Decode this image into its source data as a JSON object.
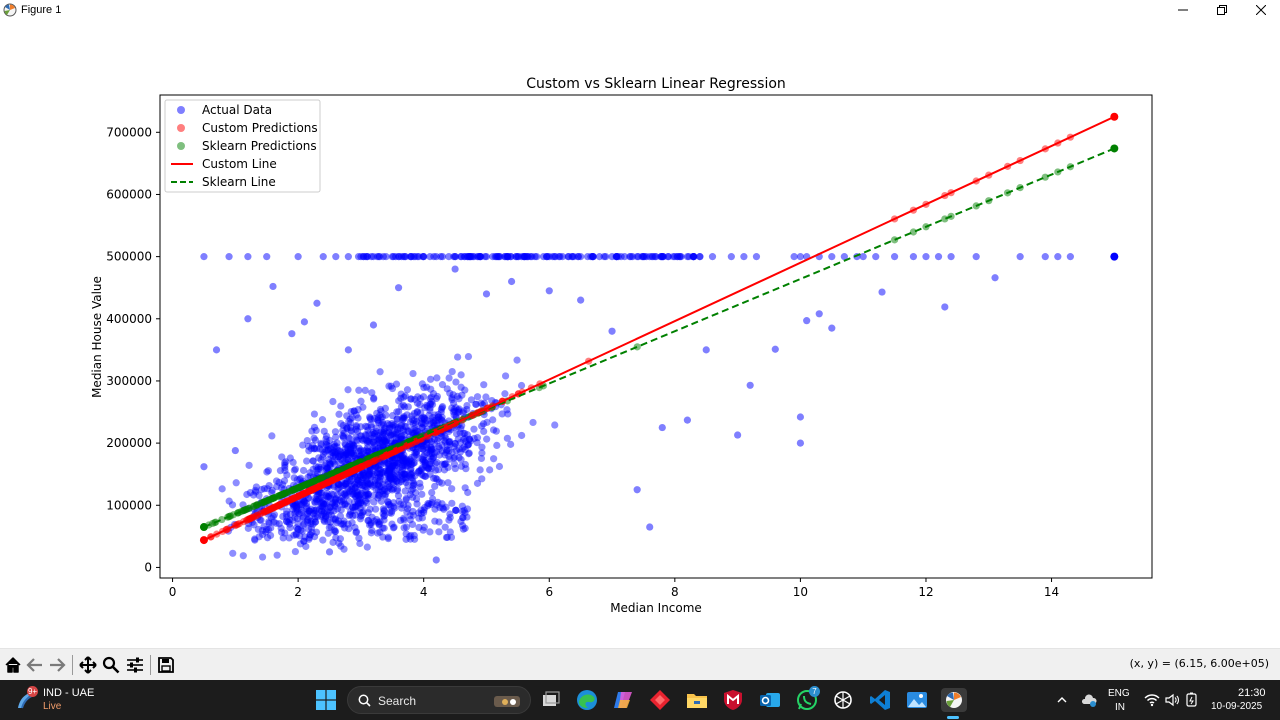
{
  "window": {
    "title": "Figure 1"
  },
  "toolbar": {
    "coords": "(x, y) = (6.15, 6.00e+05)"
  },
  "taskbar": {
    "weather_badge": "9+",
    "weather_location": "IND - UAE",
    "weather_status": "Live",
    "search_label": "Search",
    "whatsapp_badge": "7",
    "lang_top": "ENG",
    "lang_bottom": "IN",
    "time": "21:30",
    "date": "10-09-2025"
  },
  "chart_data": {
    "type": "scatter",
    "title": "Custom vs Sklearn Linear Regression",
    "xlabel": "Median Income",
    "ylabel": "Median House Value",
    "xlim": [
      -0.2,
      15.6
    ],
    "ylim": [
      -17000,
      760000
    ],
    "xticks": [
      0,
      2,
      4,
      6,
      8,
      10,
      12,
      14
    ],
    "yticks": [
      0,
      100000,
      200000,
      300000,
      400000,
      500000,
      600000,
      700000
    ],
    "legend_position": "upper-left",
    "legend": [
      "Actual Data",
      "Custom Predictions",
      "Sklearn Predictions",
      "Custom Line",
      "Sklearn Line"
    ],
    "colors": {
      "actual": "#0000ff",
      "custom": "#ff0000",
      "sklearn": "#008000"
    },
    "custom_line": {
      "x": [
        0.5,
        15.0
      ],
      "y": [
        44000,
        725000
      ]
    },
    "sklearn_line": {
      "x": [
        0.5,
        15.0
      ],
      "y": [
        65000,
        674000
      ]
    },
    "capped_points_y": 500001,
    "capped_points_x": [
      0.5,
      0.9,
      1.2,
      1.5,
      2.0,
      2.4,
      2.6,
      2.8,
      3.0,
      3.1,
      3.2,
      3.3,
      3.4,
      3.5,
      3.6,
      3.7,
      3.8,
      3.9,
      4.0,
      4.1,
      4.2,
      4.3,
      4.4,
      4.5,
      4.6,
      4.7,
      4.8,
      4.9,
      5.0,
      5.1,
      5.2,
      5.3,
      5.5,
      5.6,
      5.8,
      6.0,
      6.1,
      6.3,
      6.5,
      6.7,
      6.8,
      6.9,
      7.0,
      7.1,
      7.2,
      7.3,
      7.4,
      7.5,
      7.6,
      7.7,
      7.8,
      7.9,
      8.0,
      8.1,
      8.2,
      8.3,
      8.4,
      8.6,
      8.9,
      9.1,
      9.3,
      9.9,
      10.0,
      10.1,
      10.3,
      10.5,
      10.7,
      10.9,
      11.0,
      11.2,
      11.5,
      11.8,
      12.0,
      12.2,
      12.4,
      12.8,
      13.5,
      13.9,
      14.1,
      14.3,
      15.0
    ],
    "actual_sample": [
      [
        0.5,
        162000
      ],
      [
        0.7,
        350000
      ],
      [
        1.0,
        188000
      ],
      [
        1.2,
        400000
      ],
      [
        1.6,
        452000
      ],
      [
        1.9,
        376000
      ],
      [
        2.1,
        395000
      ],
      [
        2.3,
        425000
      ],
      [
        2.5,
        25000
      ],
      [
        2.8,
        350000
      ],
      [
        3.2,
        390000
      ],
      [
        3.6,
        450000
      ],
      [
        4.2,
        12000
      ],
      [
        4.5,
        480000
      ],
      [
        5.0,
        440000
      ],
      [
        5.4,
        460000
      ],
      [
        6.0,
        445000
      ],
      [
        6.5,
        430000
      ],
      [
        7.0,
        380000
      ],
      [
        7.4,
        125000
      ],
      [
        7.6,
        65000
      ],
      [
        7.8,
        225000
      ],
      [
        8.2,
        237000
      ],
      [
        8.5,
        350000
      ],
      [
        9.0,
        213000
      ],
      [
        9.2,
        293000
      ],
      [
        9.6,
        351000
      ],
      [
        10.0,
        242000
      ],
      [
        10.0,
        200000
      ],
      [
        10.1,
        397000
      ],
      [
        10.3,
        408000
      ],
      [
        10.5,
        385000
      ],
      [
        11.3,
        443000
      ],
      [
        12.3,
        419000
      ],
      [
        13.1,
        466000
      ]
    ]
  }
}
